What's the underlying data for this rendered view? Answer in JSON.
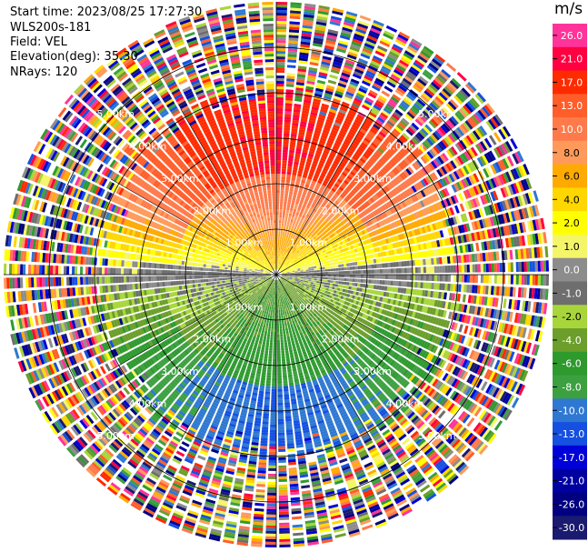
{
  "info": {
    "start_time": "Start time: 2023/08/25 17:27:30",
    "instrument": "WLS200s-181",
    "field": "Field: VEL",
    "elevation": "Elevation(deg): 35.30",
    "nrays": "NRays: 120"
  },
  "chart_data": {
    "type": "heatmap",
    "projection": "polar-ppi",
    "field": "VEL",
    "units": "m/s",
    "nrays": 120,
    "elevation_deg": 35.3,
    "range_rings_km": [
      1.0,
      2.0,
      3.0,
      4.0,
      5.0
    ],
    "range_ring_labels": [
      "1.00km",
      "2.00km",
      "3.00km",
      "4.00km",
      "5.00km"
    ],
    "max_range_km": 6.0,
    "colorbar": {
      "tick_labels": [
        "26.0",
        "21.0",
        "17.0",
        "13.0",
        "10.0",
        "8.0",
        "6.0",
        "4.0",
        "2.0",
        "1.0",
        "0.0",
        "-1.0",
        "-2.0",
        "-4.0",
        "-6.0",
        "-8.0",
        "-10.0",
        "-13.0",
        "-17.0",
        "-21.0",
        "-26.0",
        "-30.0"
      ],
      "colors": [
        "#ff3399",
        "#ff0040",
        "#ff2a00",
        "#ff5e2a",
        "#ff7a4a",
        "#ff9a5a",
        "#ffaa00",
        "#ffd700",
        "#ffff00",
        "#f5f56a",
        "#8c8c8c",
        "#6e6e6e",
        "#a8d63a",
        "#6b9e2a",
        "#2e9a2e",
        "#3ca040",
        "#2e78d2",
        "#1550e0",
        "#0000d8",
        "#0000a0",
        "#000080",
        "#1a1a70"
      ]
    },
    "velocity_pattern": {
      "north_sector_mps": 13.0,
      "north_far_mps": 21.0,
      "east_west_axis_mps": 0.0,
      "south_sector_mps": -6.0,
      "south_far_mps": -10.0,
      "noise_beyond_km": 4.2
    }
  }
}
